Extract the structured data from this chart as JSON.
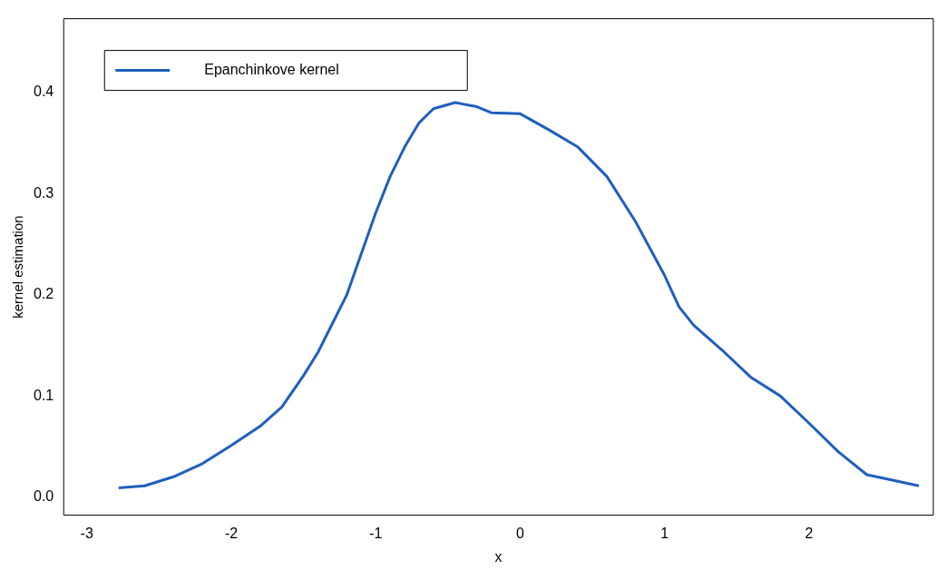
{
  "chart_data": {
    "type": "line",
    "xlabel": "x",
    "ylabel": "kernel estimation",
    "xlim": [
      -3.16,
      2.86
    ],
    "ylim": [
      -0.018,
      0.473
    ],
    "xticks": [
      -3,
      -2,
      -1,
      0,
      1,
      2
    ],
    "yticks": [
      {
        "value": 0,
        "label": "0.0"
      },
      {
        "value": 0.1,
        "label": "0.1"
      },
      {
        "value": 0.2,
        "label": "0.2"
      },
      {
        "value": 0.3,
        "label": "0.3"
      },
      {
        "value": 0.4,
        "label": "0.4"
      }
    ],
    "grid": false,
    "legend": "top left",
    "marker": "none",
    "line_style": "solid",
    "series": [
      {
        "name": "Epanchinkove kernel",
        "color": "#1f5fbf",
        "x": [
          -2.78,
          -2.6,
          -2.4,
          -2.2,
          -2.0,
          -1.8,
          -1.65,
          -1.5,
          -1.4,
          -1.2,
          -1.0,
          -0.9,
          -0.8,
          -0.7,
          -0.6,
          -0.45,
          -0.3,
          -0.2,
          0,
          0.2,
          0.4,
          0.6,
          0.8,
          1.0,
          1.1,
          1.2,
          1.4,
          1.6,
          1.8,
          2.0,
          2.2,
          2.4,
          2.6,
          2.76
        ],
        "values": [
          0.009,
          0.011,
          0.02,
          0.033,
          0.051,
          0.07,
          0.089,
          0.12,
          0.143,
          0.2,
          0.281,
          0.317,
          0.346,
          0.37,
          0.384,
          0.39,
          0.386,
          0.38,
          0.379,
          0.363,
          0.346,
          0.317,
          0.272,
          0.219,
          0.188,
          0.17,
          0.145,
          0.118,
          0.1,
          0.073,
          0.045,
          0.022,
          0.016,
          0.011
        ]
      }
    ]
  }
}
